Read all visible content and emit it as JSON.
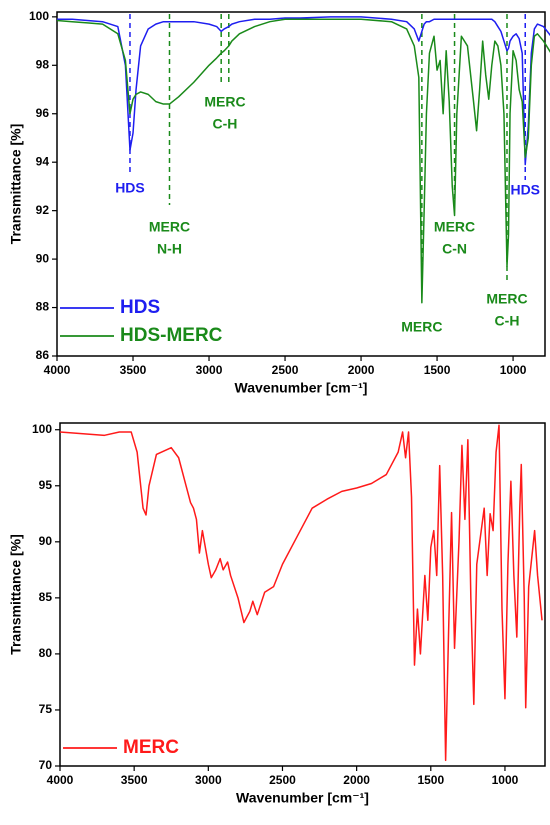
{
  "chart_data": [
    {
      "type": "line",
      "xlabel": "Wavenumber [cm⁻¹]",
      "ylabel": "Transmittance [%]",
      "xlim": [
        4000,
        790
      ],
      "ylim": [
        86,
        100.2
      ],
      "xticks": [
        4000,
        3500,
        3000,
        2500,
        2000,
        1500,
        1000
      ],
      "yticks": [
        86,
        88,
        90,
        92,
        94,
        96,
        98,
        100
      ],
      "grid": false,
      "legend": "lower left",
      "x": [
        4000,
        3900,
        3800,
        3700,
        3600,
        3550,
        3520,
        3500,
        3480,
        3450,
        3400,
        3350,
        3300,
        3260,
        3200,
        3100,
        3000,
        2950,
        2920,
        2900,
        2870,
        2850,
        2800,
        2700,
        2600,
        2500,
        2400,
        2200,
        2000,
        1800,
        1700,
        1650,
        1620,
        1600,
        1585,
        1570,
        1550,
        1520,
        1500,
        1480,
        1460,
        1440,
        1420,
        1400,
        1385,
        1370,
        1340,
        1300,
        1260,
        1240,
        1220,
        1200,
        1180,
        1160,
        1140,
        1120,
        1100,
        1080,
        1060,
        1040,
        1030,
        1020,
        1000,
        980,
        960,
        940,
        920,
        900,
        880,
        860,
        840,
        800,
        750
      ],
      "series": [
        {
          "name": "HDS",
          "color": "#1e1ef0",
          "values": [
            99.9,
            99.9,
            99.85,
            99.8,
            99.6,
            98,
            94.5,
            95.2,
            97,
            98.8,
            99.5,
            99.7,
            99.8,
            99.8,
            99.8,
            99.8,
            99.7,
            99.6,
            99.4,
            99.5,
            99.6,
            99.7,
            99.8,
            99.9,
            99.9,
            99.95,
            99.95,
            100,
            100,
            99.9,
            99.8,
            99.5,
            99,
            99.4,
            99.7,
            99.8,
            99.8,
            99.9,
            99.9,
            99.9,
            99.9,
            99.9,
            99.9,
            99.9,
            99.9,
            99.9,
            99.9,
            99.9,
            99.9,
            99.9,
            99.9,
            99.9,
            99.9,
            99.9,
            99.9,
            99.8,
            99.6,
            99.4,
            99,
            98.6,
            98.7,
            99,
            99.2,
            99.3,
            99.1,
            98.5,
            93.9,
            95.5,
            98.5,
            99.5,
            99.7,
            99.6,
            99.2
          ]
        },
        {
          "name": "HDS-MERC",
          "color": "#1a8a1a",
          "values": [
            99.85,
            99.8,
            99.75,
            99.7,
            99.3,
            98.2,
            96,
            96.6,
            96.8,
            96.9,
            96.8,
            96.5,
            96.4,
            96.4,
            96.7,
            97.3,
            98,
            98.3,
            98.5,
            98.6,
            98.8,
            99,
            99.3,
            99.6,
            99.8,
            99.9,
            99.9,
            99.9,
            99.9,
            99.8,
            99.5,
            98.8,
            97.5,
            88.2,
            92,
            96,
            98.5,
            99.2,
            97.8,
            98.2,
            96,
            98.6,
            96.5,
            93,
            91.8,
            96,
            99.2,
            98.8,
            96.5,
            95.3,
            97,
            99,
            97.6,
            96.6,
            98,
            99,
            98.8,
            98,
            96,
            89.7,
            91,
            96,
            98.6,
            98.2,
            97,
            96.5,
            94.2,
            95,
            98,
            99.2,
            99.3,
            99,
            98.5
          ]
        }
      ],
      "annotations": [
        {
          "text": [
            "HDS"
          ],
          "x": [
            3520
          ],
          "color": "#1e1ef0"
        },
        {
          "text": [
            "MERC",
            "N-H"
          ],
          "x": [
            3260
          ],
          "color": "#1a8a1a"
        },
        {
          "text": [
            "MERC",
            "C-H"
          ],
          "x": [
            2920,
            2870
          ],
          "color": "#1a8a1a"
        },
        {
          "text": [
            "MERC"
          ],
          "x": [
            1600
          ],
          "color": "#1a8a1a"
        },
        {
          "text": [
            "MERC",
            "C-N"
          ],
          "x": [
            1385
          ],
          "color": "#1a8a1a"
        },
        {
          "text": [
            "MERC",
            "C-H"
          ],
          "x": [
            1040
          ],
          "color": "#1a8a1a"
        },
        {
          "text": [
            "HDS"
          ],
          "x": [
            920
          ],
          "color": "#1e1ef0"
        }
      ]
    },
    {
      "type": "line",
      "xlabel": "Wavenumber [cm⁻¹]",
      "ylabel": "Transmittance [%]",
      "xlim": [
        4000,
        730
      ],
      "ylim": [
        70,
        100.6
      ],
      "xticks": [
        4000,
        3500,
        3000,
        2500,
        2000,
        1500,
        1000
      ],
      "yticks": [
        70,
        75,
        80,
        85,
        90,
        95,
        100
      ],
      "grid": false,
      "legend": "lower left",
      "x": [
        4000,
        3800,
        3700,
        3600,
        3520,
        3480,
        3440,
        3420,
        3400,
        3350,
        3250,
        3200,
        3150,
        3120,
        3100,
        3080,
        3060,
        3040,
        3000,
        2980,
        2950,
        2920,
        2900,
        2870,
        2850,
        2800,
        2760,
        2720,
        2700,
        2670,
        2620,
        2560,
        2500,
        2400,
        2300,
        2200,
        2100,
        2000,
        1900,
        1800,
        1720,
        1690,
        1670,
        1650,
        1630,
        1610,
        1590,
        1570,
        1540,
        1520,
        1500,
        1480,
        1460,
        1440,
        1420,
        1400,
        1380,
        1360,
        1340,
        1310,
        1290,
        1270,
        1250,
        1230,
        1210,
        1190,
        1160,
        1140,
        1120,
        1100,
        1080,
        1060,
        1040,
        1020,
        1000,
        980,
        960,
        940,
        920,
        900,
        890,
        870,
        860,
        840,
        800,
        780,
        750
      ],
      "series": [
        {
          "name": "MERC",
          "color": "#ff1a1a",
          "values": [
            99.8,
            99.6,
            99.5,
            99.8,
            99.8,
            98,
            93,
            92.4,
            95,
            97.8,
            98.4,
            97.5,
            95,
            93.5,
            93,
            92,
            89,
            91,
            88,
            86.8,
            87.5,
            88.5,
            87.5,
            88.2,
            87,
            85,
            82.8,
            83.8,
            84.7,
            83.5,
            85.5,
            86,
            88,
            90.5,
            93,
            93.8,
            94.5,
            94.8,
            95.2,
            96,
            98,
            99.8,
            97.5,
            99.8,
            94,
            79,
            84,
            80,
            87,
            83,
            89.5,
            91,
            87,
            96.8,
            87,
            70.5,
            82,
            92.6,
            80.5,
            90,
            98.6,
            92,
            99.1,
            85,
            75.5,
            88,
            91,
            93,
            87,
            92.5,
            91,
            98,
            100.4,
            84,
            76,
            88,
            95.4,
            87,
            81.5,
            93,
            96.9,
            85,
            75.2,
            86,
            91,
            87,
            83
          ]
        }
      ]
    }
  ]
}
